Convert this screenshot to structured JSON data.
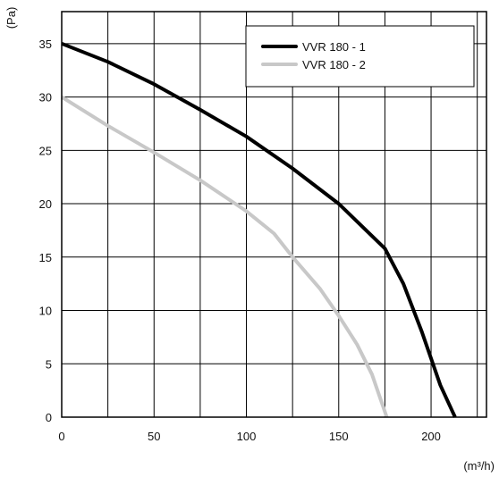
{
  "chart_data": {
    "type": "line",
    "title": "",
    "xlabel": "(m³/h)",
    "ylabel": "(Pa)",
    "xlim": [
      0,
      230
    ],
    "ylim": [
      0,
      38
    ],
    "x_ticks": [
      0,
      50,
      100,
      150,
      200
    ],
    "y_ticks": [
      0,
      5,
      10,
      15,
      20,
      25,
      30,
      35
    ],
    "x_grid_step": 25,
    "y_grid_step": 5,
    "grid": true,
    "legend_position": "top-right",
    "series": [
      {
        "name": "VVR 180 -  1",
        "color": "#000000",
        "points": [
          [
            0,
            35
          ],
          [
            25,
            33.3
          ],
          [
            50,
            31.2
          ],
          [
            75,
            28.8
          ],
          [
            100,
            26.3
          ],
          [
            125,
            23.3
          ],
          [
            150,
            20
          ],
          [
            175,
            15.8
          ],
          [
            185,
            12.5
          ],
          [
            195,
            8
          ],
          [
            205,
            3
          ],
          [
            213,
            0
          ]
        ]
      },
      {
        "name": "VVR 180 -  2",
        "color": "#c8c8c8",
        "points": [
          [
            0,
            30
          ],
          [
            25,
            27.3
          ],
          [
            50,
            24.8
          ],
          [
            75,
            22.2
          ],
          [
            100,
            19.3
          ],
          [
            115,
            17.2
          ],
          [
            125,
            15
          ],
          [
            140,
            12
          ],
          [
            150,
            9.5
          ],
          [
            160,
            6.8
          ],
          [
            168,
            4
          ],
          [
            173,
            1.5
          ],
          [
            176,
            0
          ]
        ]
      }
    ]
  }
}
